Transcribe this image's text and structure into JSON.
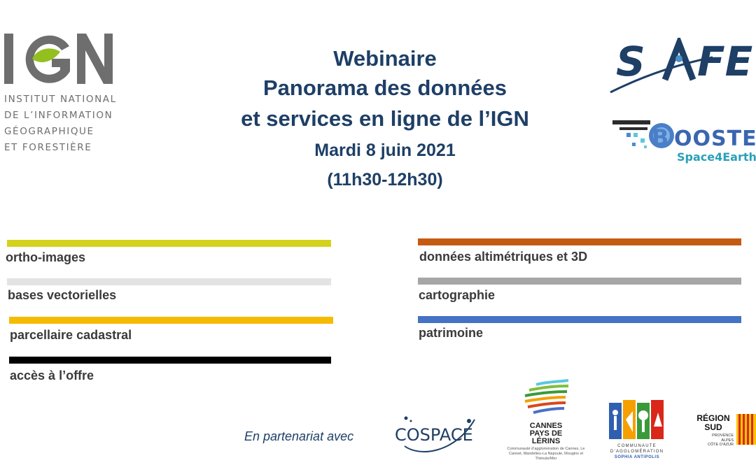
{
  "ign": {
    "wordmark": "IGN",
    "lines": [
      "INSTITUT NATIONAL",
      "DE L’INFORMATION",
      "GÉOGRAPHIQUE",
      "ET FORESTIÈRE"
    ]
  },
  "title": {
    "line1": "Webinaire",
    "line2": "Panorama des données",
    "line3": "et services en ligne de l’IGN",
    "date": "Mardi 8 juin 2021",
    "time": "(11h30-12h30)"
  },
  "logos": {
    "safe": "SAFE",
    "booster": "BOOSTER",
    "booster_sub": "Space4Earth"
  },
  "categories_left": [
    {
      "label": "ortho-images",
      "color": "#d4d21c"
    },
    {
      "label": "bases vectorielles",
      "color": "#e3e3e3"
    },
    {
      "label": "parcellaire cadastral",
      "color": "#f5bb00"
    },
    {
      "label": "accès à l’offre",
      "color": "#000000"
    }
  ],
  "categories_right": [
    {
      "label": "données altimétriques et 3D",
      "color": "#c55a11"
    },
    {
      "label": "cartographie",
      "color": "#a6a6a6"
    },
    {
      "label": "patrimoine",
      "color": "#4472c4"
    }
  ],
  "partners": {
    "intro": "En partenariat avec",
    "cospace": "COSPACE",
    "cannes_title": [
      "CANNES",
      "PAYS DE",
      "LÉRINS"
    ],
    "cannes_sub": "Communauté d’agglomération de Cannes, Le Cannet, Mandelieu-La Napoule, Mougins et Théoule/Mer",
    "casa_line1": "COMMUNAUTE",
    "casa_line2": "D’AGGLOMÉRATION",
    "casa_line3": "SOPHIA ANTIPOLIS",
    "region_line1": "RÉGION",
    "region_line2": "SUD",
    "region_small": [
      "PROVENCE",
      "ALPES",
      "CÔTE D’AZUR"
    ]
  }
}
